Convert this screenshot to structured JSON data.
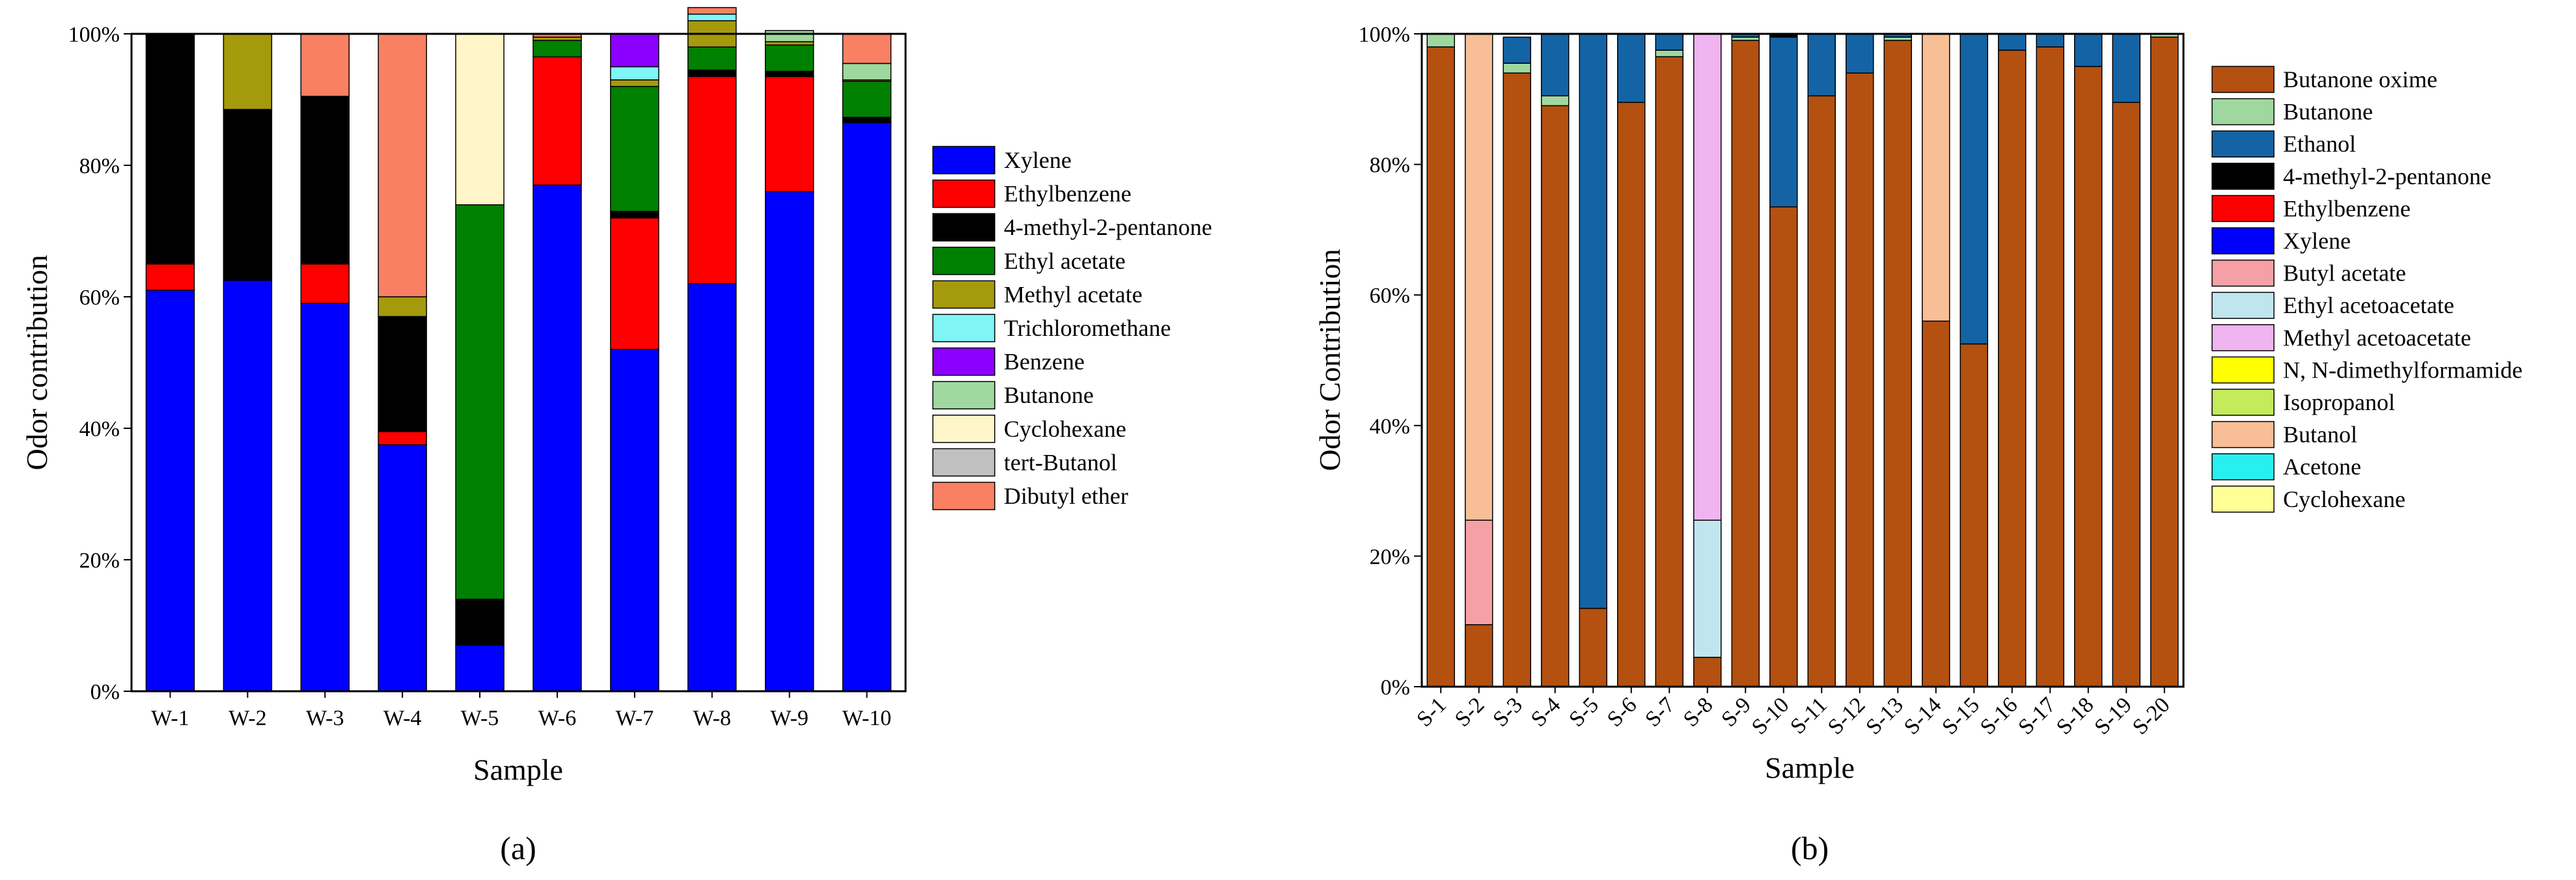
{
  "panels": [
    {
      "id": "a",
      "caption": "(a)",
      "chart_data": {
        "type": "stacked-bar-100",
        "title": "",
        "xlabel": "Sample",
        "ylabel": "Odor contribution",
        "ylim": [
          0,
          100
        ],
        "yticks": [
          "0%",
          "20%",
          "40%",
          "60%",
          "80%",
          "100%"
        ],
        "categories": [
          "W-1",
          "W-2",
          "W-3",
          "W-4",
          "W-5",
          "W-6",
          "W-7",
          "W-8",
          "W-9",
          "W-10"
        ],
        "legend_position": "right",
        "series": [
          {
            "name": "Xylene",
            "color": "#0000ff",
            "values": [
              61,
              62.5,
              59,
              37.5,
              7,
              77,
              52,
              62,
              76,
              86.5
            ]
          },
          {
            "name": "Ethylbenzene",
            "color": "#ff0000",
            "values": [
              4,
              0,
              6,
              2,
              0,
              19.5,
              20,
              31.5,
              17.5,
              0
            ]
          },
          {
            "name": "4-methyl-2-pentanone",
            "color": "#000000",
            "values": [
              35,
              26,
              25.5,
              17.5,
              7,
              0,
              1,
              1,
              0.8,
              0.8
            ]
          },
          {
            "name": "Ethyl acetate",
            "color": "#008000",
            "values": [
              0,
              0,
              0,
              0,
              60,
              2.5,
              19,
              3.5,
              4,
              5.5
            ]
          },
          {
            "name": "Methyl acetate",
            "color": "#a59a0c",
            "values": [
              0,
              11.5,
              0,
              3,
              0,
              0.5,
              1,
              4,
              0.5,
              0.2
            ]
          },
          {
            "name": "Trichloromethane",
            "color": "#7ff5f5",
            "values": [
              0,
              0,
              0,
              0,
              0,
              0,
              2,
              1,
              0,
              0
            ]
          },
          {
            "name": "Benzene",
            "color": "#8b00ff",
            "values": [
              0,
              0,
              0,
              0,
              0,
              0,
              5,
              0,
              0,
              0
            ]
          },
          {
            "name": "Butanone",
            "color": "#9fd89f",
            "values": [
              0,
              0,
              0,
              0,
              0,
              0,
              0,
              0,
              1.7,
              2.5
            ]
          },
          {
            "name": "Cyclohexane",
            "color": "#fff5c8",
            "values": [
              0,
              0,
              0,
              0,
              26,
              0,
              0,
              0,
              0,
              0
            ]
          },
          {
            "name": "tert-Butanol",
            "color": "#c0c0c0",
            "values": [
              0,
              0,
              0,
              0,
              0,
              0,
              0,
              0,
              0,
              0
            ]
          },
          {
            "name": "Dibutyl ether",
            "color": "#fa8064",
            "values": [
              0,
              0,
              9.5,
              40,
              0,
              0.5,
              0,
              1,
              0,
              4.5
            ]
          }
        ]
      }
    },
    {
      "id": "b",
      "caption": "(b)",
      "chart_data": {
        "type": "stacked-bar-100",
        "title": "",
        "xlabel": "Sample",
        "ylabel": "Odor Contribution",
        "ylim": [
          0,
          100
        ],
        "yticks": [
          "0%",
          "20%",
          "40%",
          "60%",
          "80%",
          "100%"
        ],
        "categories": [
          "S-1",
          "S-2",
          "S-3",
          "S-4",
          "S-5",
          "S-6",
          "S-7",
          "S-8",
          "S-9",
          "S-10",
          "S-11",
          "S-12",
          "S-13",
          "S-14",
          "S-15",
          "S-16",
          "S-17",
          "S-18",
          "S-19",
          "S-20"
        ],
        "legend_position": "right",
        "series": [
          {
            "name": "Butanone oxime",
            "color": "#b45010",
            "values": [
              98,
              9.5,
              94,
              89,
              12,
              89.5,
              96.5,
              4.5,
              99,
              73.5,
              90.5,
              94,
              99,
              56,
              52.5,
              97.5,
              98,
              95,
              89.5,
              99.5
            ]
          },
          {
            "name": "Butanone",
            "color": "#9fd89f",
            "values": [
              2,
              0,
              1.5,
              1.5,
              0,
              0,
              1,
              0,
              0.5,
              0,
              0,
              0,
              0.5,
              0,
              0,
              0,
              0,
              0,
              0,
              0.5
            ]
          },
          {
            "name": "Ethanol",
            "color": "#1464a5",
            "values": [
              0,
              0,
              4,
              9.5,
              88,
              10.5,
              2.5,
              0,
              0.5,
              26,
              9.5,
              6,
              0.5,
              0,
              47.5,
              2.5,
              2,
              5,
              10.5,
              0
            ]
          },
          {
            "name": "4-methyl-2-pentanone",
            "color": "#000000",
            "values": [
              0,
              0,
              0,
              0,
              0,
              0,
              0,
              0,
              0,
              0.5,
              0,
              0,
              0,
              0,
              0,
              0,
              0,
              0,
              0,
              0
            ]
          },
          {
            "name": "Ethylbenzene",
            "color": "#ff0000",
            "values": [
              0,
              0,
              0,
              0,
              0,
              0,
              0,
              0,
              0,
              0,
              0,
              0,
              0,
              0,
              0,
              0,
              0,
              0,
              0,
              0
            ]
          },
          {
            "name": "Xylene",
            "color": "#0000ff",
            "values": [
              0,
              0,
              0,
              0,
              0,
              0,
              0,
              0,
              0,
              0,
              0,
              0,
              0,
              0,
              0,
              0,
              0,
              0,
              0,
              0
            ]
          },
          {
            "name": "Butyl acetate",
            "color": "#f5a0a5",
            "values": [
              0,
              16,
              0,
              0,
              0,
              0,
              0,
              0,
              0,
              0,
              0,
              0,
              0,
              0,
              0,
              0,
              0,
              0,
              0,
              0
            ]
          },
          {
            "name": "Ethyl acetoacetate",
            "color": "#bfe6ee",
            "values": [
              0,
              0,
              0,
              0,
              0,
              0,
              0,
              21,
              0,
              0,
              0,
              0,
              0,
              0,
              0,
              0,
              0,
              0,
              0,
              0
            ]
          },
          {
            "name": "Methyl acetoacetate",
            "color": "#f0b4f0",
            "values": [
              0,
              0,
              0,
              0,
              0,
              0,
              0,
              74.5,
              0,
              0,
              0,
              0,
              0,
              0,
              0,
              0,
              0,
              0,
              0,
              0
            ]
          },
          {
            "name": "N, N-dimethylformamide",
            "color": "#ffff00",
            "values": [
              0,
              0,
              0,
              0,
              0,
              0,
              0,
              0,
              0,
              0,
              0,
              0,
              0,
              0,
              0,
              0,
              0,
              0,
              0,
              0
            ]
          },
          {
            "name": "Isopropanol",
            "color": "#c3eb5a",
            "values": [
              0,
              0,
              0,
              0,
              0,
              0,
              0,
              0,
              0,
              0,
              0,
              0,
              0,
              0,
              0,
              0,
              0,
              0,
              0,
              0
            ]
          },
          {
            "name": "Butanol",
            "color": "#f8be96",
            "values": [
              0,
              74.5,
              0,
              0,
              0,
              0,
              0,
              0,
              0,
              0,
              0,
              0,
              0,
              44,
              0,
              0,
              0,
              0,
              0,
              0
            ]
          },
          {
            "name": "Acetone",
            "color": "#28f0f0",
            "values": [
              0,
              0,
              0,
              0,
              0,
              0,
              0,
              0,
              0,
              0,
              0,
              0,
              0,
              0,
              0,
              0,
              0,
              0,
              0,
              0
            ]
          },
          {
            "name": "Cyclohexane",
            "color": "#ffff96",
            "values": [
              0,
              0,
              0,
              0,
              0,
              0,
              0,
              0,
              0,
              0,
              0,
              0,
              0,
              0,
              0,
              0,
              0,
              0,
              0,
              0
            ]
          }
        ]
      }
    }
  ]
}
